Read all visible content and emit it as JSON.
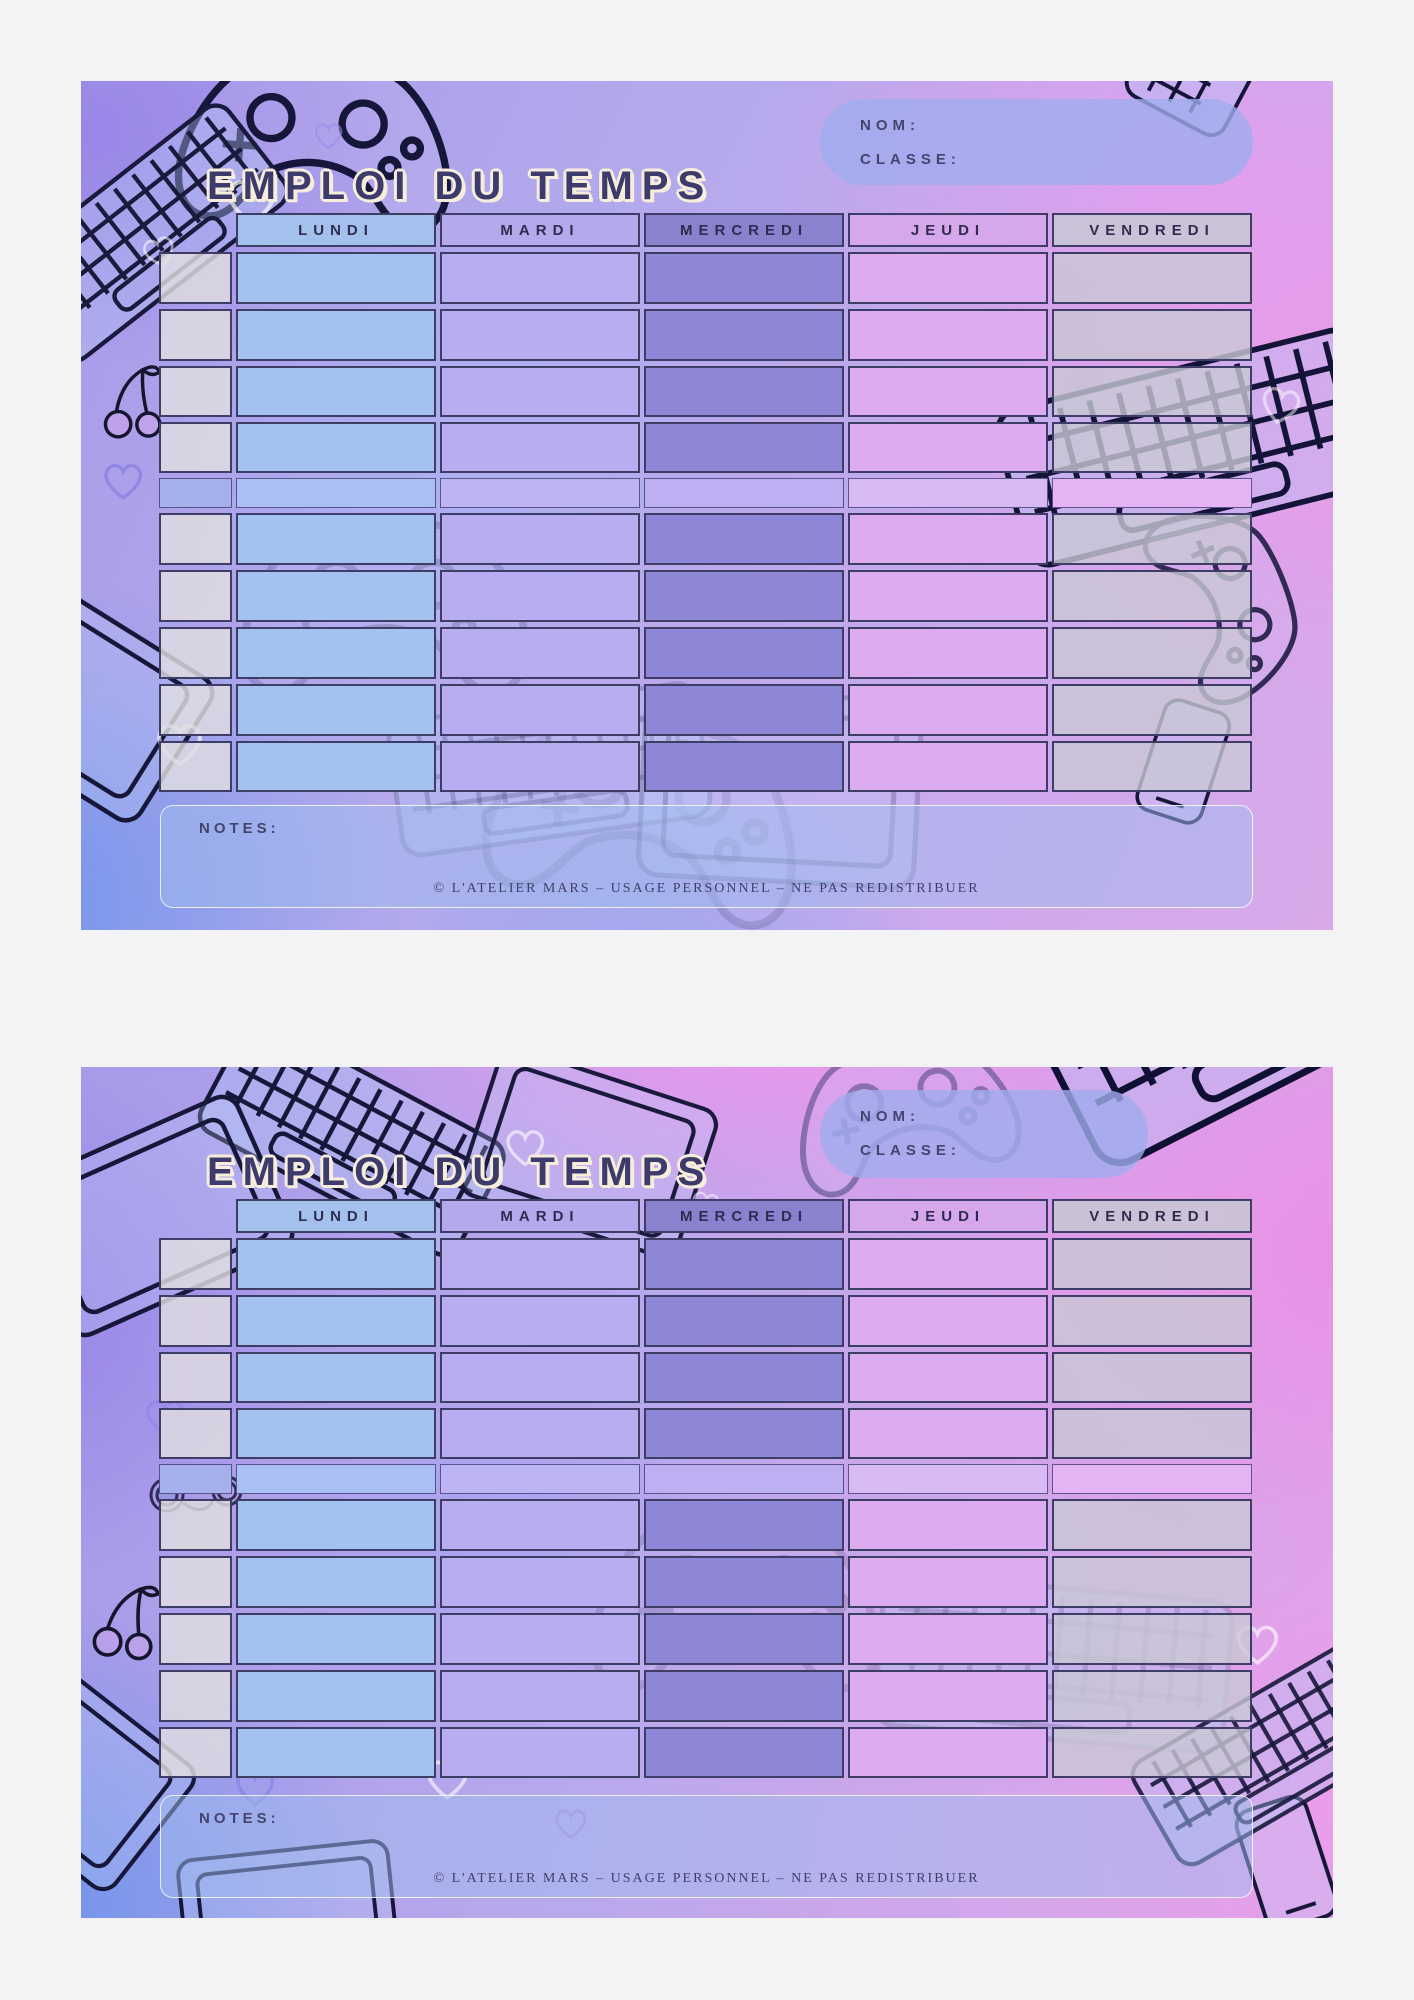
{
  "page": {
    "background_color": "#f3f3f5"
  },
  "cards": [
    {
      "title": "EMPLOI DU TEMPS",
      "name_field": {
        "label": "NOM:",
        "value": ""
      },
      "class_field": {
        "label": "CLASSE:",
        "value": ""
      },
      "days": [
        "LUNDI",
        "MARDI",
        "MERCREDI",
        "JEUDI",
        "VENDREDI"
      ],
      "schedule": {
        "rows_before_break": 4,
        "rows_after_break": 5,
        "cells_empty": true
      },
      "notes": {
        "label": "NOTES:",
        "value": ""
      },
      "copyright": "© L'ATELIER MARS – USAGE PERSONNEL – NE PAS REDISTRIBUER"
    },
    {
      "title": "EMPLOI DU TEMPS",
      "name_field": {
        "label": "NOM:",
        "value": ""
      },
      "class_field": {
        "label": "CLASSE:",
        "value": ""
      },
      "days": [
        "LUNDI",
        "MARDI",
        "MERCREDI",
        "JEUDI",
        "VENDREDI"
      ],
      "schedule": {
        "rows_before_break": 4,
        "rows_after_break": 5,
        "cells_empty": true
      },
      "notes": {
        "label": "NOTES:",
        "value": ""
      },
      "copyright": "© L'ATELIER MARS – USAGE PERSONNEL – NE PAS REDISTRIBUER"
    }
  ],
  "theme": {
    "title_color": "#3d3b6b",
    "title_outline": "#f6eddc",
    "header_text_color": "#2e2d50",
    "label_text_color": "#45446e",
    "copyright_text_color": "#403f6a",
    "cell_border_color": "#3e3d66",
    "name_box_bg": "rgba(159,172,238,0.8)",
    "notes_box_bg": "rgba(159,187,238,0.5)",
    "time_column": {
      "cell": "rgba(224,222,225,0.82)",
      "break": "#a6b0ec"
    },
    "day_columns": [
      {
        "name": "LUNDI",
        "header": "#a4c0ec",
        "cell": "#a4c2f0",
        "break": "#aabff4"
      },
      {
        "name": "MARDI",
        "header": "#b5a9ee",
        "cell": "#b9adf2",
        "break": "#bdb4f4"
      },
      {
        "name": "MERCREDI",
        "header": "#8a82cf",
        "cell": "#8e86d7",
        "break": "#bdaff2"
      },
      {
        "name": "JEUDI",
        "header": "#d7a7eb",
        "cell": "#dcabf0",
        "break": "#d7b9f4"
      },
      {
        "name": "VENDREDI",
        "header": "rgba(200,200,211,0.85)",
        "cell": "rgba(201,200,212,0.8)",
        "break": "#e6b4f4"
      }
    ]
  }
}
